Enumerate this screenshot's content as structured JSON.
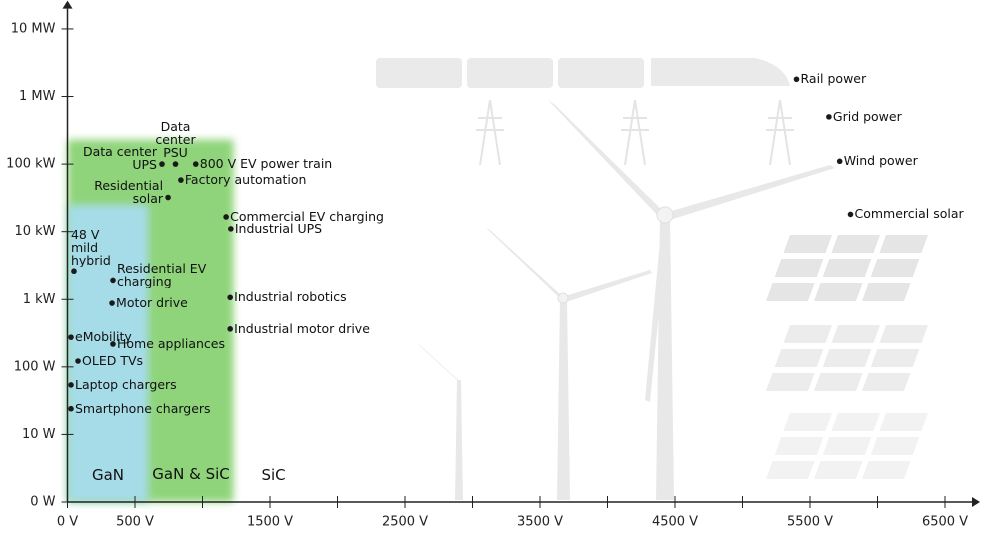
{
  "chart_data": {
    "type": "scatter",
    "log_y": true,
    "point_color": "#1a1a1a",
    "xlim": [
      0,
      6700
    ],
    "ylim": [
      1,
      20000000
    ],
    "xticks": [
      {
        "value": 0,
        "label": "0 V"
      },
      {
        "value": 500,
        "label": "500 V"
      },
      {
        "value": 1500,
        "label": "1500 V"
      },
      {
        "value": 2500,
        "label": "2500 V"
      },
      {
        "value": 3500,
        "label": "3500 V"
      },
      {
        "value": 4500,
        "label": "4500 V"
      },
      {
        "value": 5500,
        "label": "5500 V"
      },
      {
        "value": 6500,
        "label": "6500 V"
      }
    ],
    "xminorticks": [
      1000,
      2000,
      3000,
      4000,
      5000,
      6000
    ],
    "yticks": [
      {
        "value": 1,
        "label": "0 W"
      },
      {
        "value": 10,
        "label": "10 W"
      },
      {
        "value": 100,
        "label": "100 W"
      },
      {
        "value": 1000,
        "label": "1 kW"
      },
      {
        "value": 10000,
        "label": "10 kW"
      },
      {
        "value": 100000,
        "label": "100 kW"
      },
      {
        "value": 1000000,
        "label": "1 MW"
      },
      {
        "value": 10000000,
        "label": "10 MW"
      }
    ],
    "regions": [
      {
        "name": "GaN & SiC",
        "color": "#8fd47a",
        "x": [
          0,
          1230
        ],
        "y": [
          1,
          230000
        ]
      },
      {
        "name": "GaN",
        "color": "#a6dce8",
        "x": [
          0,
          600
        ],
        "y": [
          1,
          25000
        ]
      }
    ],
    "region_label": "SiC",
    "points": [
      {
        "label": "Rail power",
        "x": 5400,
        "y": 1800000
      },
      {
        "label": "Grid power",
        "x": 5640,
        "y": 500000
      },
      {
        "label": "Wind power",
        "x": 5720,
        "y": 110000
      },
      {
        "label": "Commercial solar",
        "x": 5800,
        "y": 18000
      },
      {
        "label": "Data center PSU",
        "x": 800,
        "y": 100000
      },
      {
        "label": "Data center UPS",
        "x": 700,
        "y": 100000
      },
      {
        "label": "800 V EV power train",
        "x": 950,
        "y": 100000
      },
      {
        "label": "Factory automation",
        "x": 840,
        "y": 58000
      },
      {
        "label": "Residential solar",
        "x": 745,
        "y": 32000
      },
      {
        "label": "Commercial EV charging",
        "x": 1175,
        "y": 16500
      },
      {
        "label": "Industrial UPS",
        "x": 1210,
        "y": 11000
      },
      {
        "label": "48 V mild hybrid",
        "x": 48,
        "y": 2600
      },
      {
        "label": "Residential EV charging",
        "x": 337,
        "y": 1900
      },
      {
        "label": "Motor drive",
        "x": 330,
        "y": 880
      },
      {
        "label": "Industrial robotics",
        "x": 1205,
        "y": 1070
      },
      {
        "label": "Industrial motor drive",
        "x": 1205,
        "y": 365
      },
      {
        "label": "eMobility",
        "x": 26,
        "y": 275
      },
      {
        "label": "Home appliances",
        "x": 337,
        "y": 218
      },
      {
        "label": "OLED TVs",
        "x": 78,
        "y": 122
      },
      {
        "label": "Laptop chargers",
        "x": 26,
        "y": 54
      },
      {
        "label": "Smartphone chargers",
        "x": 26,
        "y": 24
      }
    ]
  }
}
